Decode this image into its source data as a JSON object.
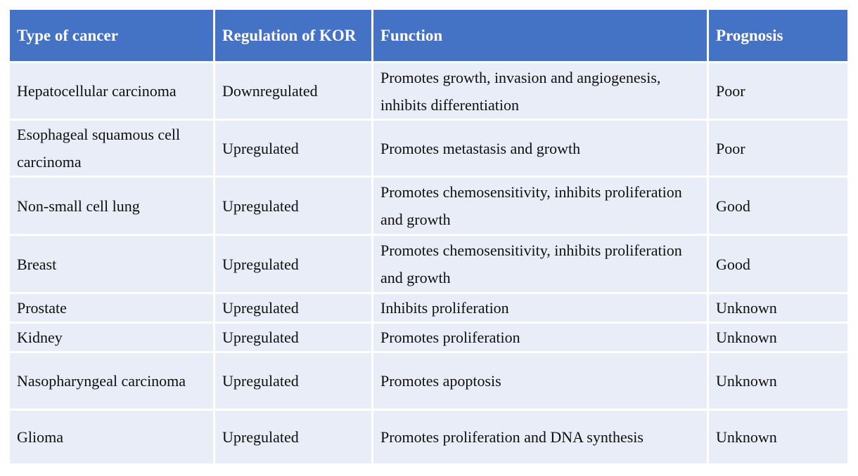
{
  "table": {
    "columns": [
      {
        "label": "Type of cancer"
      },
      {
        "label": "Regulation of KOR"
      },
      {
        "label": "Function"
      },
      {
        "label": "Prognosis"
      }
    ],
    "rows": [
      {
        "type": "Hepatocellular carcinoma",
        "regulation": "Downregulated",
        "function": "Promotes growth, invasion and angiogenesis, inhibits differentiation",
        "prognosis": "Poor"
      },
      {
        "type": "Esophageal squamous cell carcinoma",
        "regulation": "Upregulated",
        "function": "Promotes metastasis and growth",
        "prognosis": "Poor"
      },
      {
        "type": "Non-small cell lung",
        "regulation": "Upregulated",
        "function": "Promotes chemosensitivity, inhibits proliferation and growth",
        "prognosis": "Good"
      },
      {
        "type": "Breast",
        "regulation": "Upregulated",
        "function": "Promotes chemosensitivity, inhibits proliferation and growth",
        "prognosis": "Good"
      },
      {
        "type": "Prostate",
        "regulation": "Upregulated",
        "function": "Inhibits proliferation",
        "prognosis": "Unknown"
      },
      {
        "type": "Kidney",
        "regulation": "Upregulated",
        "function": "Promotes proliferation",
        "prognosis": "Unknown"
      },
      {
        "type": "Nasopharyngeal carcinoma",
        "regulation": "Upregulated",
        "function": "Promotes apoptosis",
        "prognosis": "Unknown"
      },
      {
        "type": "Glioma",
        "regulation": "Upregulated",
        "function": "Promotes proliferation and DNA synthesis",
        "prognosis": "Unknown"
      }
    ],
    "colors": {
      "header_bg": "#4472C4",
      "header_text": "#FFFFFF",
      "row_bg": "#E9EDF7",
      "body_text": "#0F0F0F",
      "grid_gap": "#FFFFFF"
    }
  }
}
